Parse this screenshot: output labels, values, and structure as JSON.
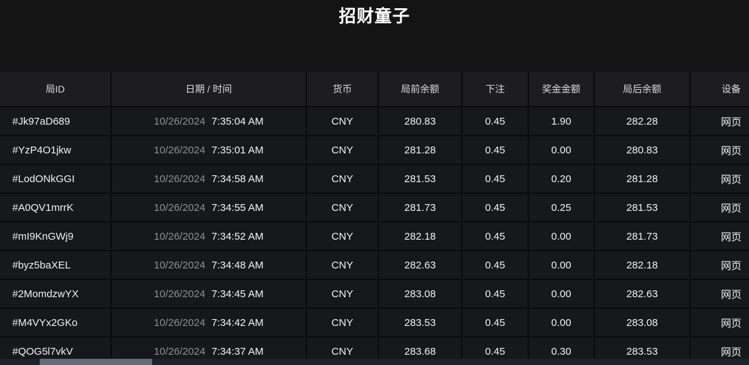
{
  "title": "招财童子",
  "colors": {
    "background": "#141414",
    "header_bg": "#1d1d1f",
    "row_bg": "#17181a",
    "divider": "#0b0b0c",
    "date_muted": "#8f8f8f",
    "text": "#ffffff",
    "scrollbar_track": "#1a242c",
    "scrollbar_thumb": "#5f6e78"
  },
  "table": {
    "headers": {
      "round_id": "局ID",
      "datetime": "日期 / 时间",
      "currency": "货币",
      "balance_before": "局前余额",
      "bet": "下注",
      "win_amount": "奖金金额",
      "balance_after": "局后余额",
      "device": "设备"
    },
    "rows": [
      {
        "id": "#Jk97aD689",
        "date": "10/26/2024",
        "time": "7:35:04 AM",
        "currency": "CNY",
        "balance_before": "280.83",
        "bet": "0.45",
        "win": "1.90",
        "balance_after": "282.28",
        "device": "网页"
      },
      {
        "id": "#YzP4O1jkw",
        "date": "10/26/2024",
        "time": "7:35:01 AM",
        "currency": "CNY",
        "balance_before": "281.28",
        "bet": "0.45",
        "win": "0.00",
        "balance_after": "280.83",
        "device": "网页"
      },
      {
        "id": "#LodONkGGI",
        "date": "10/26/2024",
        "time": "7:34:58 AM",
        "currency": "CNY",
        "balance_before": "281.53",
        "bet": "0.45",
        "win": "0.20",
        "balance_after": "281.28",
        "device": "网页"
      },
      {
        "id": "#A0QV1mrrK",
        "date": "10/26/2024",
        "time": "7:34:55 AM",
        "currency": "CNY",
        "balance_before": "281.73",
        "bet": "0.45",
        "win": "0.25",
        "balance_after": "281.53",
        "device": "网页"
      },
      {
        "id": "#mI9KnGWj9",
        "date": "10/26/2024",
        "time": "7:34:52 AM",
        "currency": "CNY",
        "balance_before": "282.18",
        "bet": "0.45",
        "win": "0.00",
        "balance_after": "281.73",
        "device": "网页"
      },
      {
        "id": "#byz5baXEL",
        "date": "10/26/2024",
        "time": "7:34:48 AM",
        "currency": "CNY",
        "balance_before": "282.63",
        "bet": "0.45",
        "win": "0.00",
        "balance_after": "282.18",
        "device": "网页"
      },
      {
        "id": "#2MomdzwYX",
        "date": "10/26/2024",
        "time": "7:34:45 AM",
        "currency": "CNY",
        "balance_before": "283.08",
        "bet": "0.45",
        "win": "0.00",
        "balance_after": "282.63",
        "device": "网页"
      },
      {
        "id": "#M4VYx2GKo",
        "date": "10/26/2024",
        "time": "7:34:42 AM",
        "currency": "CNY",
        "balance_before": "283.53",
        "bet": "0.45",
        "win": "0.00",
        "balance_after": "283.08",
        "device": "网页"
      },
      {
        "id": "#QOG5l7vkV",
        "date": "10/26/2024",
        "time": "7:34:37 AM",
        "currency": "CNY",
        "balance_before": "283.68",
        "bet": "0.45",
        "win": "0.30",
        "balance_after": "283.53",
        "device": "网页"
      }
    ]
  }
}
